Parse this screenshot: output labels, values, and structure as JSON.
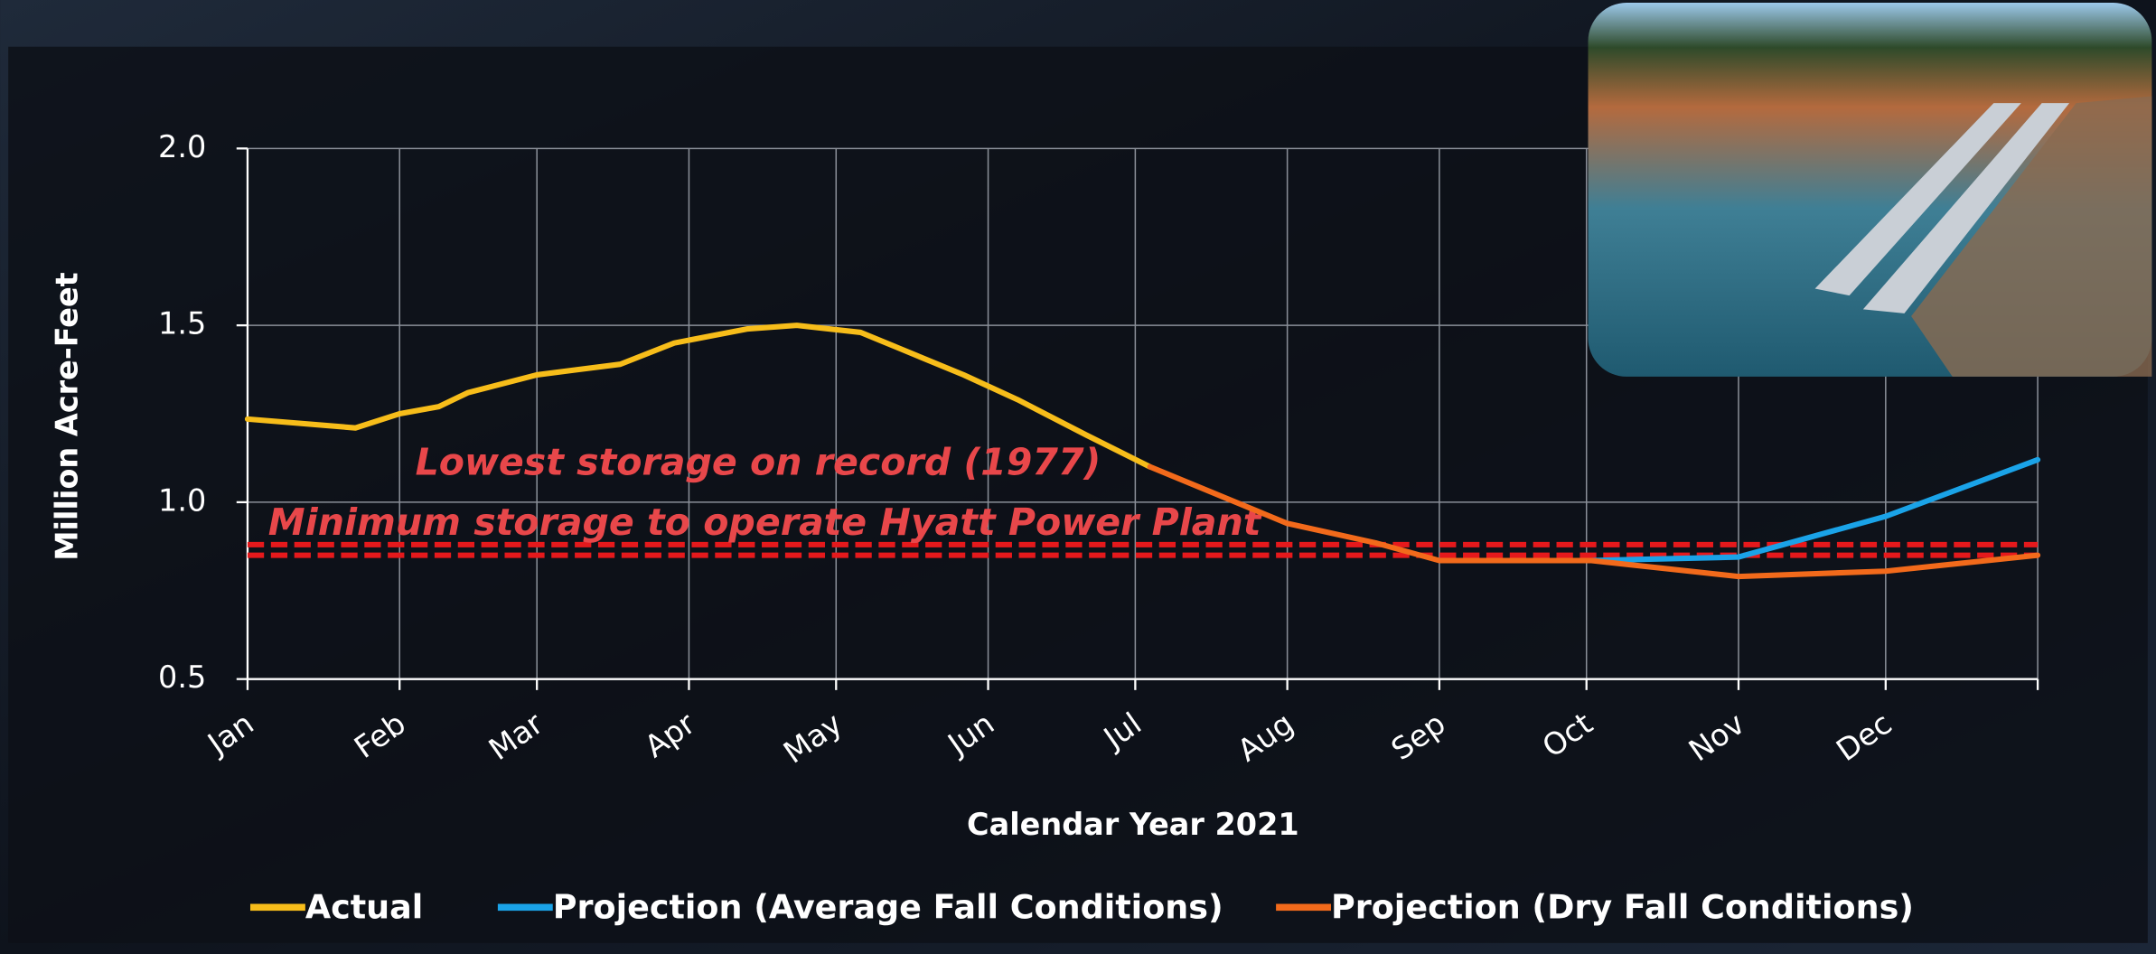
{
  "chart_data": {
    "type": "line",
    "y_label": "Million Acre-Feet",
    "x_label": "Calendar Year 2021",
    "xlim": [
      0,
      365
    ],
    "xticks": [
      {
        "value": 0,
        "label": "Jan"
      },
      {
        "value": 31,
        "label": "Feb"
      },
      {
        "value": 59,
        "label": "Mar"
      },
      {
        "value": 90,
        "label": "Apr"
      },
      {
        "value": 120,
        "label": "May"
      },
      {
        "value": 151,
        "label": "Jun"
      },
      {
        "value": 181,
        "label": "Jul"
      },
      {
        "value": 212,
        "label": "Aug"
      },
      {
        "value": 243,
        "label": "Sep"
      },
      {
        "value": 273,
        "label": "Oct"
      },
      {
        "value": 304,
        "label": "Nov"
      },
      {
        "value": 334,
        "label": "Dec"
      },
      365
    ],
    "ylim": [
      0.5,
      2.0
    ],
    "yticks": [
      {
        "value": 0.5,
        "label": "0.5"
      },
      {
        "value": 1.0,
        "label": "1.0"
      },
      {
        "value": 1.5,
        "label": "1.5"
      },
      {
        "value": 2.0,
        "label": "2.0"
      }
    ],
    "grid": true,
    "reference_lines": [
      {
        "label": "Lowest storage on record (1977)",
        "value": 0.88,
        "color": "#e5191c"
      },
      {
        "label": "Minimum storage to operate Hyatt Power Plant",
        "value": 0.85,
        "color": "#e5191c"
      }
    ],
    "series": [
      {
        "name": "Actual",
        "color": "#f7bd1a",
        "x": [
          0,
          22,
          31,
          39,
          45,
          59,
          76,
          87,
          102,
          112,
          125,
          132,
          146,
          157,
          171,
          184
        ],
        "values": [
          1.235,
          1.21,
          1.25,
          1.27,
          1.31,
          1.36,
          1.39,
          1.45,
          1.49,
          1.5,
          1.48,
          1.44,
          1.36,
          1.29,
          1.19,
          1.1
        ]
      },
      {
        "name": "Projection (Average Fall Conditions)",
        "color": "#1aa3e8",
        "x": [
          274,
          304,
          334,
          365
        ],
        "values": [
          0.835,
          0.845,
          0.96,
          1.12
        ]
      },
      {
        "name": "Projection (Dry Fall Conditions)",
        "color": "#f26a1b",
        "x": [
          184,
          212,
          230,
          243,
          274,
          304,
          334,
          365
        ],
        "values": [
          1.1,
          0.94,
          0.885,
          0.835,
          0.835,
          0.79,
          0.805,
          0.85
        ]
      }
    ]
  }
}
